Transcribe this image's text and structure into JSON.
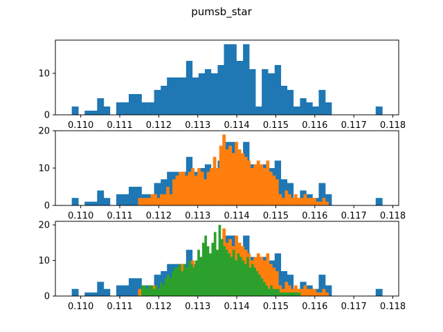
{
  "chart_data": {
    "type": "bar",
    "title": "pumsb_star",
    "colors": [
      "#1f77b4",
      "#ff7f0e",
      "#2ca02c"
    ],
    "xlim": [
      0.10935,
      0.11815
    ],
    "xticks": [
      0.11,
      0.111,
      0.112,
      0.113,
      0.114,
      0.115,
      0.116,
      0.117,
      0.118
    ],
    "xtick_labels": [
      "0.110",
      "0.111",
      "0.112",
      "0.113",
      "0.114",
      "0.115",
      "0.116",
      "0.117",
      "0.118"
    ],
    "panels": [
      {
        "ylim": [
          0,
          18
        ],
        "yticks": [
          0,
          10
        ],
        "ytick_labels": [
          "0",
          "10"
        ],
        "series": [
          {
            "color": "#1f77b4",
            "bins": [
              0.1098,
              0.1102,
              0.1106,
              0.111,
              0.1114,
              0.1118,
              0.1122,
              0.1126,
              0.113,
              0.1134,
              0.1138,
              0.1142,
              0.1146,
              0.115,
              0.1154,
              0.1158,
              0.1162,
              0.1166,
              0.117,
              0.1174,
              0.1178
            ],
            "edges": [
              0.10977,
              0.10994,
              0.1101,
              0.11026,
              0.11042,
              0.11059,
              0.11075,
              0.11091,
              0.11107,
              0.11123,
              0.1114,
              0.11156,
              0.11172,
              0.11188,
              0.11205,
              0.11221,
              0.11237,
              0.11253,
              0.1127,
              0.11286,
              0.11302,
              0.11318,
              0.11334,
              0.11351,
              0.11367,
              0.11383,
              0.11399,
              0.11416,
              0.11432,
              0.11448,
              0.11464,
              0.1148,
              0.11497,
              0.11513,
              0.11529,
              0.11545,
              0.11562,
              0.11578,
              0.11594,
              0.1161,
              0.11627,
              0.11643,
              0.11659,
              0.11675,
              0.11691,
              0.11708,
              0.11724,
              0.1174,
              0.11756,
              0.11773,
              0.11789
            ],
            "counts": [
              2,
              0,
              1,
              1,
              4,
              2,
              0,
              3,
              3,
              5,
              5,
              3,
              3,
              6,
              7,
              9,
              9,
              9,
              13,
              9,
              10,
              11,
              10,
              12,
              17,
              17,
              13,
              17,
              11,
              2,
              11,
              10,
              12,
              7,
              6,
              2,
              4,
              3,
              2,
              6,
              3,
              0,
              0,
              0,
              0,
              0,
              0,
              0,
              2,
              0
            ]
          }
        ]
      },
      {
        "ylim": [
          0,
          20
        ],
        "yticks": [
          0,
          10,
          20
        ],
        "ytick_labels": [
          "0",
          "10",
          "20"
        ],
        "series": [
          {
            "color": "#1f77b4",
            "edges": [
              0.10977,
              0.10994,
              0.1101,
              0.11026,
              0.11042,
              0.11059,
              0.11075,
              0.11091,
              0.11107,
              0.11123,
              0.1114,
              0.11156,
              0.11172,
              0.11188,
              0.11205,
              0.11221,
              0.11237,
              0.11253,
              0.1127,
              0.11286,
              0.11302,
              0.11318,
              0.11334,
              0.11351,
              0.11367,
              0.11383,
              0.11399,
              0.11416,
              0.11432,
              0.11448,
              0.11464,
              0.1148,
              0.11497,
              0.11513,
              0.11529,
              0.11545,
              0.11562,
              0.11578,
              0.11594,
              0.1161,
              0.11627,
              0.11643,
              0.11659,
              0.11675,
              0.11691,
              0.11708,
              0.11724,
              0.1174,
              0.11756,
              0.11773,
              0.11789
            ],
            "counts": [
              2,
              0,
              1,
              1,
              4,
              2,
              0,
              3,
              3,
              5,
              5,
              3,
              3,
              6,
              7,
              9,
              9,
              9,
              13,
              9,
              10,
              11,
              10,
              12,
              17,
              17,
              13,
              17,
              11,
              2,
              11,
              10,
              12,
              7,
              6,
              2,
              4,
              3,
              2,
              6,
              3,
              0,
              0,
              0,
              0,
              0,
              0,
              0,
              2,
              0
            ]
          },
          {
            "color": "#ff7f0e",
            "edges": [
              0.11147,
              0.11155,
              0.11163,
              0.11171,
              0.11179,
              0.11187,
              0.11195,
              0.11203,
              0.11211,
              0.11219,
              0.11227,
              0.11235,
              0.11243,
              0.11251,
              0.11259,
              0.11267,
              0.11275,
              0.11283,
              0.11291,
              0.11299,
              0.11307,
              0.11315,
              0.11323,
              0.11331,
              0.11339,
              0.11347,
              0.11355,
              0.11363,
              0.11371,
              0.11379,
              0.11387,
              0.11395,
              0.11403,
              0.11411,
              0.11419,
              0.11427,
              0.11435,
              0.11443,
              0.11451,
              0.11459,
              0.11467,
              0.11475,
              0.11483,
              0.11491,
              0.11499,
              0.11507,
              0.11515,
              0.11523,
              0.11531,
              0.11539,
              0.11547,
              0.11555,
              0.11563,
              0.11571,
              0.11579,
              0.11587,
              0.11595,
              0.11603,
              0.11611,
              0.11619,
              0.11627,
              0.11635
            ],
            "counts": [
              2,
              2,
              2,
              2,
              3,
              3,
              2,
              3,
              3,
              5,
              3,
              7,
              8,
              9,
              9,
              8,
              9,
              10,
              8,
              10,
              9,
              7,
              9,
              10,
              13,
              10,
              16,
              19,
              15,
              16,
              14,
              17,
              15,
              14,
              13,
              12,
              10,
              11,
              12,
              11,
              10,
              12,
              9,
              8,
              7,
              3,
              2,
              4,
              3,
              2,
              3,
              2,
              2,
              3,
              2,
              2,
              2,
              1,
              1,
              2,
              1
            ]
          }
        ]
      },
      {
        "ylim": [
          0,
          21
        ],
        "yticks": [
          0,
          10,
          20
        ],
        "ytick_labels": [
          "0",
          "10",
          "20"
        ],
        "series": [
          {
            "color": "#1f77b4",
            "edges": [
              0.10977,
              0.10994,
              0.1101,
              0.11026,
              0.11042,
              0.11059,
              0.11075,
              0.11091,
              0.11107,
              0.11123,
              0.1114,
              0.11156,
              0.11172,
              0.11188,
              0.11205,
              0.11221,
              0.11237,
              0.11253,
              0.1127,
              0.11286,
              0.11302,
              0.11318,
              0.11334,
              0.11351,
              0.11367,
              0.11383,
              0.11399,
              0.11416,
              0.11432,
              0.11448,
              0.11464,
              0.1148,
              0.11497,
              0.11513,
              0.11529,
              0.11545,
              0.11562,
              0.11578,
              0.11594,
              0.1161,
              0.11627,
              0.11643,
              0.11659,
              0.11675,
              0.11691,
              0.11708,
              0.11724,
              0.1174,
              0.11756,
              0.11773,
              0.11789
            ],
            "counts": [
              2,
              0,
              1,
              1,
              4,
              2,
              0,
              3,
              3,
              5,
              5,
              3,
              3,
              6,
              7,
              9,
              9,
              9,
              13,
              9,
              10,
              11,
              10,
              12,
              17,
              17,
              13,
              17,
              11,
              2,
              11,
              10,
              12,
              7,
              6,
              2,
              4,
              3,
              2,
              6,
              3,
              0,
              0,
              0,
              0,
              0,
              0,
              0,
              2,
              0
            ]
          },
          {
            "color": "#ff7f0e",
            "edges": [
              0.11147,
              0.11155,
              0.11163,
              0.11171,
              0.11179,
              0.11187,
              0.11195,
              0.11203,
              0.11211,
              0.11219,
              0.11227,
              0.11235,
              0.11243,
              0.11251,
              0.11259,
              0.11267,
              0.11275,
              0.11283,
              0.11291,
              0.11299,
              0.11307,
              0.11315,
              0.11323,
              0.11331,
              0.11339,
              0.11347,
              0.11355,
              0.11363,
              0.11371,
              0.11379,
              0.11387,
              0.11395,
              0.11403,
              0.11411,
              0.11419,
              0.11427,
              0.11435,
              0.11443,
              0.11451,
              0.11459,
              0.11467,
              0.11475,
              0.11483,
              0.11491,
              0.11499,
              0.11507,
              0.11515,
              0.11523,
              0.11531,
              0.11539,
              0.11547,
              0.11555,
              0.11563,
              0.11571,
              0.11579,
              0.11587,
              0.11595,
              0.11603,
              0.11611,
              0.11619,
              0.11627,
              0.11635
            ],
            "counts": [
              2,
              2,
              2,
              2,
              3,
              3,
              2,
              3,
              3,
              5,
              3,
              7,
              8,
              9,
              9,
              8,
              9,
              10,
              8,
              10,
              9,
              7,
              9,
              10,
              13,
              10,
              16,
              19,
              15,
              16,
              14,
              17,
              15,
              14,
              13,
              12,
              10,
              11,
              12,
              11,
              10,
              12,
              9,
              8,
              7,
              3,
              2,
              4,
              3,
              2,
              3,
              2,
              2,
              3,
              2,
              2,
              2,
              1,
              1,
              2,
              1
            ]
          },
          {
            "color": "#2ca02c",
            "edges": [
              0.11155,
              0.11161,
              0.11167,
              0.11173,
              0.11179,
              0.11185,
              0.11191,
              0.11197,
              0.11203,
              0.11209,
              0.11215,
              0.11221,
              0.11227,
              0.11233,
              0.11239,
              0.11245,
              0.11251,
              0.11257,
              0.11263,
              0.11269,
              0.11275,
              0.11281,
              0.11287,
              0.11293,
              0.11299,
              0.11305,
              0.11311,
              0.11317,
              0.11323,
              0.11329,
              0.11335,
              0.11341,
              0.11347,
              0.11353,
              0.11359,
              0.11365,
              0.11371,
              0.11377,
              0.11383,
              0.11389,
              0.11395,
              0.11401,
              0.11407,
              0.11413,
              0.11419,
              0.11425,
              0.11431,
              0.11437,
              0.11443,
              0.11449,
              0.11455,
              0.11461,
              0.11467,
              0.11473,
              0.11479,
              0.11485,
              0.11491,
              0.11497,
              0.11503,
              0.11509,
              0.11515,
              0.11521,
              0.11527,
              0.11533,
              0.11539,
              0.11545,
              0.11551,
              0.11557,
              0.11563
            ],
            "counts": [
              3,
              3,
              2,
              3,
              3,
              2,
              3,
              2,
              4,
              3,
              5,
              6,
              5,
              7,
              8,
              8,
              9,
              7,
              9,
              8,
              10,
              9,
              8,
              10,
              13,
              11,
              15,
              17,
              14,
              12,
              15,
              18,
              13,
              20,
              16,
              14,
              13,
              12,
              11,
              13,
              10,
              12,
              11,
              10,
              9,
              11,
              8,
              9,
              8,
              7,
              6,
              5,
              4,
              3,
              2,
              3,
              2,
              2,
              2,
              1,
              1,
              1,
              1,
              1,
              1,
              1,
              1,
              1
            ]
          }
        ]
      }
    ]
  }
}
